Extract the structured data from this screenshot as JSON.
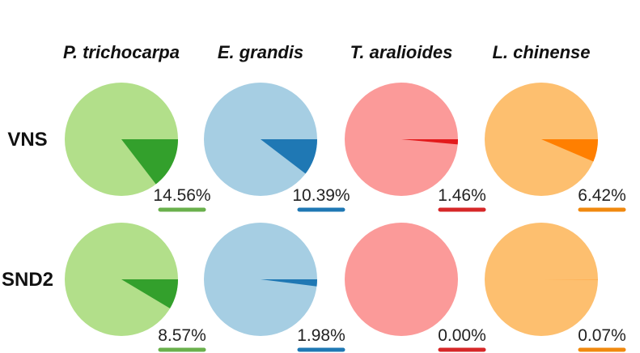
{
  "chart_data": {
    "type": "pie",
    "columns": [
      "P. trichocarpa",
      "E. grandis",
      "T. aralioides",
      "L. chinense"
    ],
    "rows": [
      "VNS",
      "SND2"
    ],
    "colors": [
      {
        "light": "#b2df8a",
        "dark": "#33a02c",
        "underline": "#6ab04c"
      },
      {
        "light": "#a6cee3",
        "dark": "#1f78b4",
        "underline": "#1f78b4"
      },
      {
        "light": "#fb9a99",
        "dark": "#e31a1c",
        "underline": "#d62728"
      },
      {
        "light": "#fdbf6f",
        "dark": "#ff7f00",
        "underline": "#f0890f"
      }
    ],
    "values": [
      [
        14.56,
        10.39,
        1.46,
        6.42
      ],
      [
        8.57,
        1.98,
        0.0,
        0.07
      ]
    ],
    "labels": [
      [
        "14.56%",
        "10.39%",
        "1.46%",
        "6.42%"
      ],
      [
        "8.57%",
        "1.98%",
        "0.00%",
        "0.07%"
      ]
    ]
  }
}
